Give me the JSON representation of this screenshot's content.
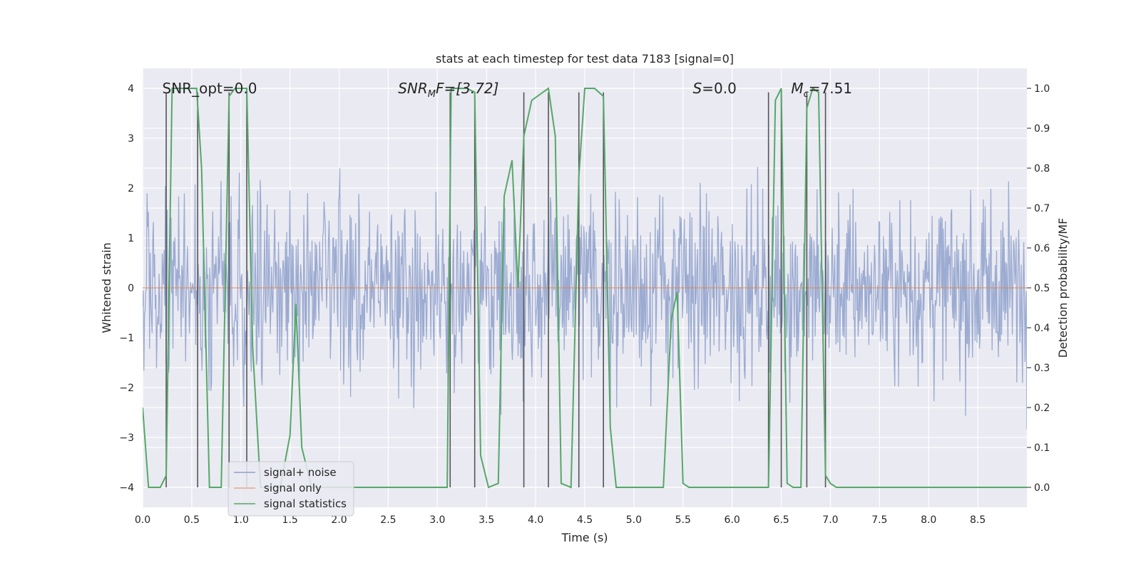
{
  "chart_data": {
    "type": "line",
    "title": "stats at each timestep for test data 7183 [signal=0]",
    "xlabel": "Time (s)",
    "ylabel": "Whitened strain",
    "y2label": "Detection probability/MF",
    "xlim": [
      0.0,
      9.0
    ],
    "ylim": [
      -4.4,
      4.4
    ],
    "y2lim": [
      -0.05,
      1.05
    ],
    "xticks": [
      0.0,
      0.5,
      1.0,
      1.5,
      2.0,
      2.5,
      3.0,
      3.5,
      4.0,
      4.5,
      5.0,
      5.5,
      6.0,
      6.5,
      7.0,
      7.5,
      8.0,
      8.5
    ],
    "xtick_labels": [
      "0.0",
      "0.5",
      "1.0",
      "1.5",
      "2.0",
      "2.5",
      "3.0",
      "3.5",
      "4.0",
      "4.5",
      "5.0",
      "5.5",
      "6.0",
      "6.5",
      "7.0",
      "7.5",
      "8.0",
      "8.5"
    ],
    "yticks": [
      4,
      3,
      2,
      1,
      0,
      -1,
      -2,
      -3,
      -4
    ],
    "ytick_labels": [
      "4",
      "3",
      "2",
      "1",
      "0",
      "−1",
      "−2",
      "−3",
      "−4"
    ],
    "y2ticks": [
      1.0,
      0.9,
      0.8,
      0.7,
      0.6,
      0.5,
      0.4,
      0.3,
      0.2,
      0.1,
      0.0
    ],
    "y2tick_labels": [
      "1.0",
      "0.9",
      "0.8",
      "0.7",
      "0.6",
      "0.5",
      "0.4",
      "0.3",
      "0.2",
      "0.1",
      "0.0"
    ],
    "annotations": [
      {
        "key": "snr_opt",
        "pre": "SNR_opt=0.0",
        "x": 0.2
      },
      {
        "key": "snr_mf",
        "base": "SNR",
        "sub": "M",
        "post": "F=[3.72]",
        "x": 2.6
      },
      {
        "key": "s",
        "base": "S",
        "post": "=0.0",
        "x": 5.6
      },
      {
        "key": "mc",
        "base": "M",
        "sub": "c",
        "post": "=7.51",
        "x": 6.6
      }
    ],
    "annotation_y": 4.0,
    "legend": {
      "placement": "lower-left",
      "entries": [
        {
          "label": "signal+ noise",
          "color": "#8da0cb"
        },
        {
          "label": "signal only",
          "color": "#e8a48c"
        },
        {
          "label": "signal statistics",
          "color": "#55a868"
        }
      ]
    },
    "noise": {
      "name": "signal+ noise",
      "color": "#8da0cb",
      "t_start": 0.0,
      "t_end": 9.0,
      "n_samples": 1400,
      "typical_upper": 2.1,
      "typical_lower": -2.0,
      "peak_upper": 3.9,
      "peak_lower": -4.0
    },
    "signal_only": {
      "name": "signal only",
      "color": "#dd8452",
      "value": 0.0
    },
    "vlines": [
      0.24,
      0.56,
      0.88,
      1.06,
      3.13,
      3.38,
      3.88,
      4.13,
      4.44,
      4.69,
      6.37,
      6.5,
      6.76,
      6.95
    ],
    "vline_range": [
      -0.0,
      0.99
    ],
    "series": [
      {
        "name": "signal statistics",
        "color": "#55a868",
        "x": [
          0.0,
          0.06,
          0.18,
          0.24,
          0.3,
          0.4,
          0.55,
          0.6,
          0.68,
          0.8,
          0.88,
          0.94,
          1.06,
          1.12,
          1.2,
          1.3,
          1.4,
          1.5,
          1.56,
          1.62,
          1.72,
          1.85,
          3.1,
          3.14,
          3.2,
          3.3,
          3.38,
          3.44,
          3.52,
          3.62,
          3.68,
          3.76,
          3.82,
          3.88,
          3.96,
          4.13,
          4.2,
          4.26,
          4.36,
          4.44,
          4.5,
          4.6,
          4.69,
          4.76,
          4.82,
          5.3,
          5.38,
          5.44,
          5.5,
          5.56,
          6.37,
          6.44,
          6.5,
          6.56,
          6.62,
          6.7,
          6.76,
          6.82,
          6.88,
          6.95,
          7.0,
          7.06,
          7.2,
          9.0
        ],
        "y": [
          0.2,
          0.0,
          0.0,
          0.03,
          1.0,
          1.0,
          1.0,
          0.8,
          0.0,
          0.0,
          0.98,
          1.0,
          1.0,
          0.35,
          0.0,
          0.0,
          0.0,
          0.13,
          0.46,
          0.1,
          0.0,
          0.0,
          0.0,
          1.0,
          1.0,
          1.0,
          0.99,
          0.08,
          0.0,
          0.01,
          0.73,
          0.82,
          0.5,
          0.88,
          0.97,
          1.0,
          0.88,
          0.01,
          0.0,
          0.78,
          1.0,
          1.0,
          0.98,
          0.15,
          0.0,
          0.0,
          0.42,
          0.49,
          0.01,
          0.0,
          0.0,
          0.97,
          1.0,
          0.01,
          0.0,
          0.0,
          0.95,
          1.0,
          0.99,
          0.03,
          0.01,
          0.0,
          0.0,
          0.0
        ]
      }
    ]
  }
}
